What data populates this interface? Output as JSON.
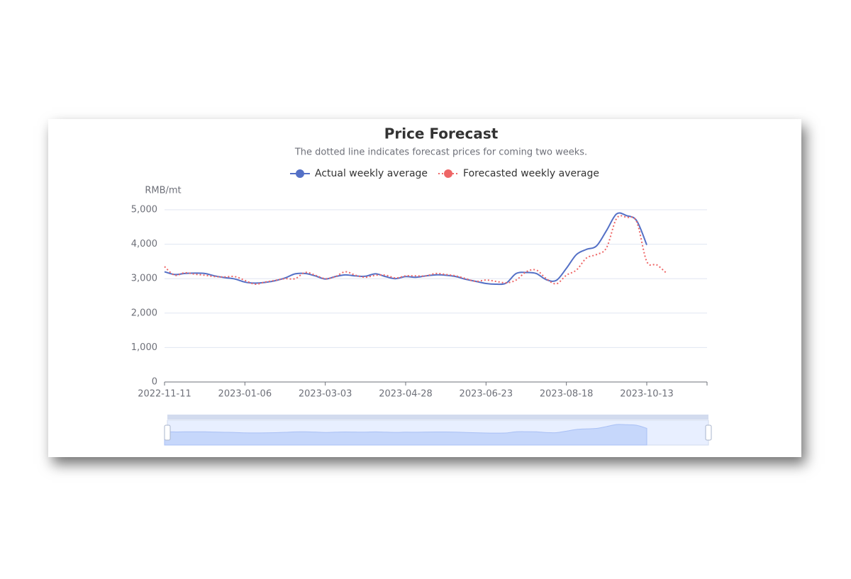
{
  "chart_data": {
    "type": "line",
    "title": "Price Forecast",
    "subtitle": "The dotted line indicates forecast prices for coming two weeks.",
    "y_axis_label": "RMB/mt",
    "categories": [
      "2022-11-11",
      null,
      null,
      null,
      null,
      null,
      null,
      null,
      "2023-01-06",
      null,
      null,
      null,
      null,
      null,
      null,
      null,
      "2023-03-03",
      null,
      null,
      null,
      null,
      null,
      null,
      null,
      "2023-04-28",
      null,
      null,
      null,
      null,
      null,
      null,
      null,
      "2023-06-23",
      null,
      null,
      null,
      null,
      null,
      null,
      null,
      "2023-08-18",
      null,
      null,
      null,
      null,
      null,
      null,
      null,
      "2023-10-13",
      null,
      null,
      null,
      null,
      null,
      null
    ],
    "series": [
      {
        "name": "Actual weekly average",
        "color": "#5470c6",
        "style": "solid",
        "values": [
          3200,
          3120,
          3150,
          3160,
          3150,
          3080,
          3030,
          2990,
          2900,
          2870,
          2890,
          2940,
          3020,
          3140,
          3150,
          3080,
          2990,
          3060,
          3110,
          3080,
          3070,
          3140,
          3060,
          3000,
          3060,
          3040,
          3080,
          3110,
          3100,
          3060,
          2980,
          2920,
          2860,
          2840,
          2870,
          3150,
          3180,
          3150,
          2970,
          2950,
          3300,
          3700,
          3850,
          3950,
          4400,
          4880,
          4830,
          4680,
          3980,
          null,
          null,
          null,
          null,
          null,
          null
        ]
      },
      {
        "name": "Forecasted weekly average",
        "color": "#ee6666",
        "style": "dotted",
        "values": [
          3350,
          3100,
          3170,
          3130,
          3100,
          3060,
          3050,
          3060,
          2950,
          2840,
          2900,
          2950,
          3000,
          3000,
          3180,
          3100,
          3000,
          3060,
          3200,
          3100,
          3040,
          3100,
          3100,
          3020,
          3080,
          3080,
          3080,
          3150,
          3120,
          3080,
          3000,
          2920,
          2960,
          2920,
          2880,
          2960,
          3200,
          3250,
          3000,
          2850,
          3100,
          3250,
          3600,
          3700,
          3900,
          4750,
          4780,
          4650,
          3500,
          3400,
          3150,
          null,
          null,
          null,
          null
        ]
      }
    ],
    "ylim": [
      0,
      5000
    ],
    "yticks": [
      0,
      {
        "value": 1000,
        "label": "1,000"
      },
      {
        "value": 2000,
        "label": "2,000"
      },
      {
        "value": 3000,
        "label": "3,000"
      },
      {
        "value": 4000,
        "label": "4,000"
      },
      {
        "value": 5000,
        "label": "5,000"
      }
    ],
    "grid": true,
    "legend": "top"
  }
}
